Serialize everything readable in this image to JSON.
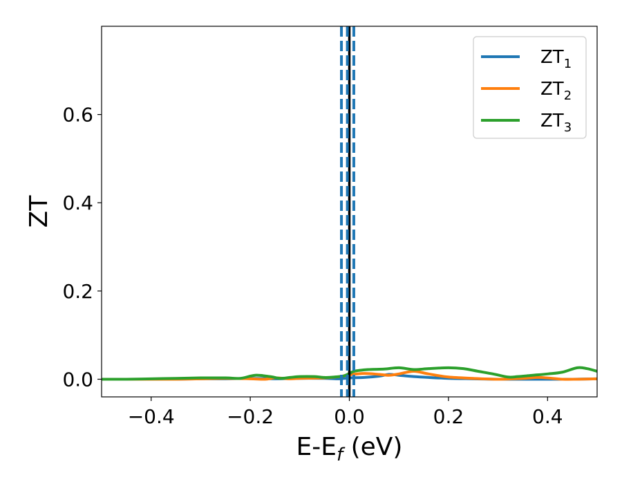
{
  "chart_data": {
    "type": "line",
    "xlabel": {
      "main": "E-E",
      "sub": "f",
      "unit": " (eV)"
    },
    "ylabel": "ZT",
    "xlim": [
      -0.5,
      0.5
    ],
    "ylim": [
      -0.04,
      0.8
    ],
    "xticks": [
      -0.4,
      -0.2,
      0.0,
      0.2,
      0.4
    ],
    "xtick_labels": [
      "−0.4",
      "−0.2",
      "0.0",
      "0.2",
      "0.4"
    ],
    "yticks": [
      0.0,
      0.2,
      0.4,
      0.6
    ],
    "ytick_labels": [
      "0.0",
      "0.2",
      "0.4",
      "0.6"
    ],
    "grid": false,
    "legend_position": "top-right",
    "vertical_lines": [
      {
        "x": 0.0,
        "style": "solid",
        "color": "#000000"
      },
      {
        "x": -0.016,
        "style": "dashed",
        "color": "#1f77b4"
      },
      {
        "x": -0.004,
        "style": "dashed",
        "color": "#1f77b4"
      },
      {
        "x": 0.009,
        "style": "dashed",
        "color": "#1f77b4"
      }
    ],
    "series": [
      {
        "name": "ZT",
        "sub": "1",
        "color": "#1f77b4",
        "x": [
          -0.5,
          -0.45,
          -0.4,
          -0.35,
          -0.3,
          -0.25,
          -0.2,
          -0.15,
          -0.1,
          -0.05,
          -0.02,
          0.0,
          0.03,
          0.06,
          0.08,
          0.1,
          0.13,
          0.16,
          0.2,
          0.25,
          0.3,
          0.35,
          0.4,
          0.45,
          0.5
        ],
        "y": [
          0.0,
          0.0,
          0.0,
          0.0,
          0.001,
          0.001,
          0.002,
          0.001,
          0.002,
          0.002,
          0.001,
          0.003,
          0.004,
          0.007,
          0.011,
          0.009,
          0.006,
          0.004,
          0.002,
          0.001,
          0.0,
          0.0,
          0.0,
          0.0,
          0.001
        ]
      },
      {
        "name": "ZT",
        "sub": "2",
        "color": "#ff7f0e",
        "x": [
          -0.5,
          -0.45,
          -0.4,
          -0.35,
          -0.3,
          -0.25,
          -0.2,
          -0.17,
          -0.15,
          -0.12,
          -0.1,
          -0.05,
          -0.02,
          0.0,
          0.03,
          0.06,
          0.08,
          0.1,
          0.13,
          0.16,
          0.2,
          0.25,
          0.3,
          0.35,
          0.38,
          0.4,
          0.43,
          0.46,
          0.5
        ],
        "y": [
          0.0,
          0.0,
          0.0,
          0.0,
          0.001,
          0.002,
          0.001,
          0.0,
          0.003,
          0.001,
          0.002,
          0.003,
          0.006,
          0.01,
          0.013,
          0.011,
          0.009,
          0.012,
          0.018,
          0.012,
          0.005,
          0.002,
          0.0,
          0.002,
          0.004,
          0.003,
          0.0,
          0.0,
          0.001
        ]
      },
      {
        "name": "ZT",
        "sub": "3",
        "color": "#2ca02c",
        "x": [
          -0.5,
          -0.45,
          -0.4,
          -0.35,
          -0.3,
          -0.25,
          -0.22,
          -0.19,
          -0.16,
          -0.14,
          -0.12,
          -0.1,
          -0.07,
          -0.05,
          -0.03,
          -0.01,
          0.01,
          0.04,
          0.07,
          0.1,
          0.13,
          0.16,
          0.2,
          0.23,
          0.26,
          0.29,
          0.32,
          0.34,
          0.37,
          0.4,
          0.43,
          0.46,
          0.48,
          0.5
        ],
        "y": [
          0.0,
          0.0,
          0.001,
          0.002,
          0.003,
          0.003,
          0.002,
          0.009,
          0.006,
          0.002,
          0.004,
          0.006,
          0.006,
          0.004,
          0.005,
          0.008,
          0.018,
          0.022,
          0.023,
          0.026,
          0.022,
          0.024,
          0.026,
          0.024,
          0.018,
          0.012,
          0.005,
          0.006,
          0.009,
          0.012,
          0.016,
          0.026,
          0.024,
          0.018
        ]
      }
    ]
  }
}
